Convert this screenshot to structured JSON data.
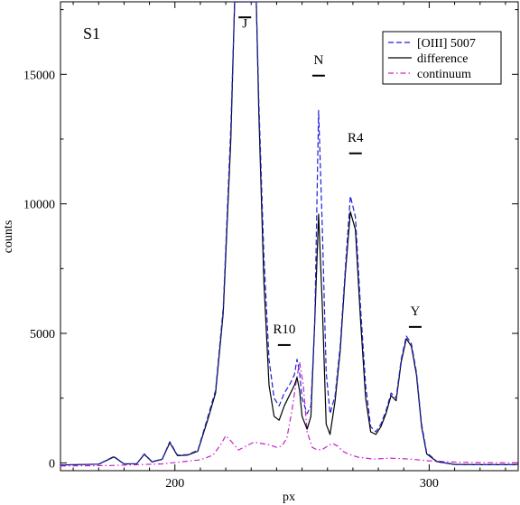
{
  "chart_data": {
    "type": "line",
    "panel_label": "S1",
    "xlabel": "px",
    "ylabel": "counts",
    "xlim": [
      155,
      335
    ],
    "ylim": [
      -300,
      17800
    ],
    "x_ticks": [
      200,
      300
    ],
    "y_ticks": [
      0,
      5000,
      10000,
      15000
    ],
    "legend": {
      "placement": "top-right"
    },
    "series": [
      {
        "name": "[OIII] 5007",
        "color": "#1f1fd6",
        "style": "dashed",
        "points": [
          [
            155,
            -80
          ],
          [
            170,
            -50
          ],
          [
            176,
            250
          ],
          [
            180,
            -40
          ],
          [
            185,
            -30
          ],
          [
            188,
            350
          ],
          [
            191,
            50
          ],
          [
            195,
            150
          ],
          [
            198,
            820
          ],
          [
            201,
            300
          ],
          [
            205,
            320
          ],
          [
            209,
            480
          ],
          [
            213,
            1800
          ],
          [
            216,
            2800
          ],
          [
            219,
            6000
          ],
          [
            222,
            13000
          ],
          [
            223.5,
            17800
          ],
          [
            232,
            17800
          ],
          [
            233,
            14000
          ],
          [
            235,
            8000
          ],
          [
            237,
            4000
          ],
          [
            239,
            2500
          ],
          [
            241,
            2200
          ],
          [
            243,
            2700
          ],
          [
            245,
            3000
          ],
          [
            247,
            3400
          ],
          [
            248,
            4000
          ],
          [
            249,
            3500
          ],
          [
            250,
            2500
          ],
          [
            252,
            1900
          ],
          [
            253.5,
            2200
          ],
          [
            255,
            5500
          ],
          [
            256.5,
            13600
          ],
          [
            258,
            9000
          ],
          [
            259.5,
            3500
          ],
          [
            261,
            1900
          ],
          [
            263,
            2600
          ],
          [
            265,
            4500
          ],
          [
            267,
            7500
          ],
          [
            269,
            10300
          ],
          [
            271,
            9500
          ],
          [
            273,
            6000
          ],
          [
            275,
            3000
          ],
          [
            277,
            1400
          ],
          [
            279,
            1200
          ],
          [
            281,
            1500
          ],
          [
            283,
            2000
          ],
          [
            285,
            2700
          ],
          [
            287,
            2500
          ],
          [
            289,
            4000
          ],
          [
            291,
            4900
          ],
          [
            293,
            4600
          ],
          [
            295,
            3500
          ],
          [
            297,
            1500
          ],
          [
            299,
            400
          ],
          [
            303,
            60
          ],
          [
            310,
            -60
          ],
          [
            320,
            -70
          ],
          [
            335,
            -70
          ]
        ]
      },
      {
        "name": "difference",
        "color": "#000000",
        "style": "solid",
        "points": [
          [
            155,
            -80
          ],
          [
            170,
            -50
          ],
          [
            176,
            230
          ],
          [
            180,
            -40
          ],
          [
            185,
            -30
          ],
          [
            188,
            330
          ],
          [
            191,
            40
          ],
          [
            195,
            140
          ],
          [
            198,
            780
          ],
          [
            201,
            280
          ],
          [
            205,
            300
          ],
          [
            209,
            450
          ],
          [
            213,
            1700
          ],
          [
            216,
            2700
          ],
          [
            219,
            5800
          ],
          [
            222,
            12500
          ],
          [
            223.5,
            17800
          ],
          [
            232,
            17800
          ],
          [
            233,
            13500
          ],
          [
            235,
            7000
          ],
          [
            237,
            3000
          ],
          [
            239,
            1800
          ],
          [
            241,
            1650
          ],
          [
            243,
            2200
          ],
          [
            245,
            2600
          ],
          [
            247,
            3000
          ],
          [
            248,
            3300
          ],
          [
            249,
            2800
          ],
          [
            250,
            1800
          ],
          [
            252,
            1300
          ],
          [
            253.5,
            1800
          ],
          [
            255,
            5500
          ],
          [
            256.5,
            9600
          ],
          [
            258,
            6000
          ],
          [
            259.5,
            1500
          ],
          [
            261,
            1100
          ],
          [
            263,
            2400
          ],
          [
            265,
            4300
          ],
          [
            267,
            7300
          ],
          [
            269,
            9700
          ],
          [
            271,
            9000
          ],
          [
            273,
            5500
          ],
          [
            275,
            2500
          ],
          [
            277,
            1200
          ],
          [
            279,
            1100
          ],
          [
            281,
            1400
          ],
          [
            283,
            1900
          ],
          [
            285,
            2600
          ],
          [
            287,
            2400
          ],
          [
            289,
            3900
          ],
          [
            291,
            4800
          ],
          [
            293,
            4500
          ],
          [
            295,
            3400
          ],
          [
            297,
            1400
          ],
          [
            299,
            350
          ],
          [
            303,
            50
          ],
          [
            310,
            -60
          ],
          [
            320,
            -70
          ],
          [
            335,
            -70
          ]
        ]
      },
      {
        "name": "continuum",
        "color": "#c81ec8",
        "style": "dashdot",
        "points": [
          [
            155,
            -120
          ],
          [
            175,
            -100
          ],
          [
            195,
            -40
          ],
          [
            210,
            120
          ],
          [
            215,
            300
          ],
          [
            218,
            700
          ],
          [
            220,
            1050
          ],
          [
            222,
            850
          ],
          [
            225,
            500
          ],
          [
            228,
            650
          ],
          [
            231,
            800
          ],
          [
            234,
            750
          ],
          [
            237,
            700
          ],
          [
            240,
            600
          ],
          [
            242,
            650
          ],
          [
            244,
            950
          ],
          [
            246,
            2000
          ],
          [
            247.5,
            3000
          ],
          [
            249,
            3900
          ],
          [
            250.5,
            3000
          ],
          [
            252,
            1200
          ],
          [
            254,
            600
          ],
          [
            256,
            500
          ],
          [
            258,
            520
          ],
          [
            260,
            650
          ],
          [
            262,
            750
          ],
          [
            264,
            650
          ],
          [
            266,
            450
          ],
          [
            268,
            350
          ],
          [
            272,
            220
          ],
          [
            278,
            150
          ],
          [
            285,
            180
          ],
          [
            292,
            150
          ],
          [
            300,
            80
          ],
          [
            310,
            30
          ],
          [
            320,
            10
          ],
          [
            335,
            0
          ]
        ]
      }
    ],
    "annotations": [
      {
        "text": "J",
        "x": 227.5,
        "y_bar": 17200,
        "y_text": 16800
      },
      {
        "text": "N",
        "x": 256.5,
        "y_bar": 14950,
        "y_text": 15400
      },
      {
        "text": "R4",
        "x": 271,
        "y_bar": 11950,
        "y_text": 12400
      },
      {
        "text": "R10",
        "x": 243,
        "y_bar": 4550,
        "y_text": 5000
      },
      {
        "text": "Y",
        "x": 294.5,
        "y_bar": 5250,
        "y_text": 5700
      }
    ]
  }
}
